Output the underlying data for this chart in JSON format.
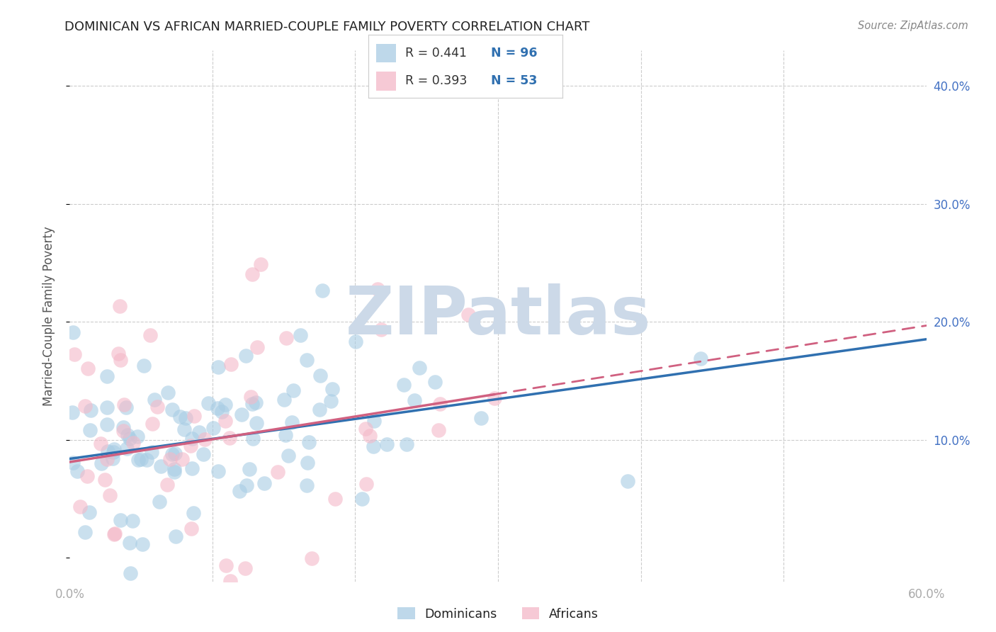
{
  "title": "DOMINICAN VS AFRICAN MARRIED-COUPLE FAMILY POVERTY CORRELATION CHART",
  "source": "Source: ZipAtlas.com",
  "ylabel": "Married-Couple Family Poverty",
  "xlim": [
    0.0,
    0.6
  ],
  "ylim": [
    -0.02,
    0.43
  ],
  "watermark": "ZIPatlas",
  "blue_scatter_color": "#a8cce4",
  "pink_scatter_color": "#f4b8c8",
  "blue_line_color": "#3070b0",
  "pink_line_color": "#d06080",
  "blue_fill_color": "#a8cce4",
  "pink_fill_color": "#f4b8c8",
  "dominicans_label": "Dominicans",
  "africans_label": "Africans",
  "grid_color": "#cccccc",
  "background_color": "#ffffff",
  "title_color": "#222222",
  "axis_label_color": "#555555",
  "tick_label_color": "#aaaaaa",
  "right_tick_color": "#4472c4",
  "source_color": "#888888",
  "legend_text_dark": "#333333",
  "legend_n_color": "#3070b0",
  "watermark_color": "#ccd9e8"
}
